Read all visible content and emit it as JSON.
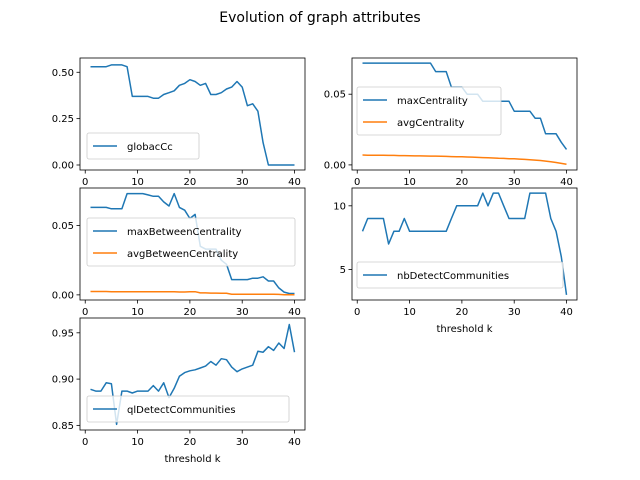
{
  "figure": {
    "title": "Evolution of graph attributes"
  },
  "chart_data": [
    {
      "type": "line",
      "title": "",
      "xlabel": "",
      "ylabel": "",
      "xlim": [
        -1,
        42
      ],
      "ylim": [
        -0.027,
        0.577
      ],
      "xticks": [
        0,
        10,
        20,
        30,
        40
      ],
      "yticks": [
        0.0,
        0.25,
        0.5
      ],
      "ytick_labels": [
        "0.00",
        "0.25",
        "0.50"
      ],
      "legend": "lower-left",
      "series": [
        {
          "name": "globacCc",
          "color": "#1f77b4",
          "x": [
            1,
            2,
            3,
            4,
            5,
            6,
            7,
            8,
            9,
            10,
            11,
            12,
            13,
            14,
            15,
            16,
            17,
            18,
            19,
            20,
            21,
            22,
            23,
            24,
            25,
            26,
            27,
            28,
            29,
            30,
            31,
            32,
            33,
            34,
            35,
            36,
            37,
            38,
            39,
            40
          ],
          "values": [
            0.53,
            0.53,
            0.53,
            0.53,
            0.54,
            0.54,
            0.54,
            0.53,
            0.37,
            0.37,
            0.37,
            0.37,
            0.36,
            0.36,
            0.38,
            0.39,
            0.4,
            0.43,
            0.44,
            0.46,
            0.45,
            0.43,
            0.44,
            0.38,
            0.38,
            0.39,
            0.41,
            0.42,
            0.45,
            0.42,
            0.32,
            0.33,
            0.29,
            0.12,
            0.0,
            0.0,
            0.0,
            0.0,
            0.0,
            0.0
          ]
        }
      ]
    },
    {
      "type": "line",
      "title": "",
      "xlabel": "",
      "ylabel": "",
      "xlim": [
        -1,
        42
      ],
      "ylim": [
        -0.0036,
        0.0756
      ],
      "xticks": [
        0,
        10,
        20,
        30,
        40
      ],
      "yticks": [
        0.0,
        0.05
      ],
      "ytick_labels": [
        "0.00",
        "0.05"
      ],
      "legend": "center-left",
      "series": [
        {
          "name": "maxCentrality",
          "color": "#1f77b4",
          "x": [
            1,
            2,
            3,
            4,
            5,
            6,
            7,
            8,
            9,
            10,
            11,
            12,
            13,
            14,
            15,
            16,
            17,
            18,
            19,
            20,
            21,
            22,
            23,
            24,
            25,
            26,
            27,
            28,
            29,
            30,
            31,
            32,
            33,
            34,
            35,
            36,
            37,
            38,
            39,
            40
          ],
          "values": [
            0.072,
            0.072,
            0.072,
            0.072,
            0.072,
            0.072,
            0.072,
            0.072,
            0.072,
            0.072,
            0.072,
            0.072,
            0.072,
            0.072,
            0.066,
            0.066,
            0.066,
            0.055,
            0.055,
            0.055,
            0.05,
            0.05,
            0.05,
            0.045,
            0.045,
            0.045,
            0.045,
            0.045,
            0.045,
            0.038,
            0.038,
            0.038,
            0.038,
            0.033,
            0.033,
            0.022,
            0.022,
            0.022,
            0.016,
            0.011
          ]
        },
        {
          "name": "avgCentrality",
          "color": "#ff7f0e",
          "x": [
            1,
            2,
            3,
            4,
            5,
            6,
            7,
            8,
            9,
            10,
            11,
            12,
            13,
            14,
            15,
            16,
            17,
            18,
            19,
            20,
            21,
            22,
            23,
            24,
            25,
            26,
            27,
            28,
            29,
            30,
            31,
            32,
            33,
            34,
            35,
            36,
            37,
            38,
            39,
            40
          ],
          "values": [
            0.007,
            0.0069,
            0.0069,
            0.0068,
            0.0068,
            0.0067,
            0.0067,
            0.0066,
            0.0066,
            0.0065,
            0.0064,
            0.0064,
            0.0063,
            0.0062,
            0.0062,
            0.0061,
            0.006,
            0.0059,
            0.0058,
            0.0057,
            0.0056,
            0.0055,
            0.0053,
            0.0052,
            0.005,
            0.0049,
            0.0047,
            0.0046,
            0.0044,
            0.0043,
            0.0041,
            0.0039,
            0.0037,
            0.0034,
            0.0031,
            0.0027,
            0.0022,
            0.0017,
            0.0011,
            0.0005
          ]
        }
      ]
    },
    {
      "type": "line",
      "title": "",
      "xlabel": "",
      "ylabel": "",
      "xlim": [
        -1,
        42
      ],
      "ylim": [
        -0.0037,
        0.077
      ],
      "xticks": [
        0,
        10,
        20,
        30,
        40
      ],
      "yticks": [
        0.0,
        0.05
      ],
      "ytick_labels": [
        "0.00",
        "0.05"
      ],
      "legend": "center-left",
      "series": [
        {
          "name": "maxBetweenCentrality",
          "color": "#1f77b4",
          "x": [
            1,
            2,
            3,
            4,
            5,
            6,
            7,
            8,
            9,
            10,
            11,
            12,
            13,
            14,
            15,
            16,
            17,
            18,
            19,
            20,
            21,
            22,
            23,
            24,
            25,
            26,
            27,
            28,
            29,
            30,
            31,
            32,
            33,
            34,
            35,
            36,
            37,
            38,
            39,
            40
          ],
          "values": [
            0.063,
            0.063,
            0.063,
            0.063,
            0.062,
            0.062,
            0.062,
            0.073,
            0.073,
            0.073,
            0.073,
            0.072,
            0.071,
            0.071,
            0.067,
            0.064,
            0.073,
            0.063,
            0.061,
            0.055,
            0.058,
            0.035,
            0.033,
            0.033,
            0.033,
            0.025,
            0.022,
            0.011,
            0.011,
            0.011,
            0.011,
            0.012,
            0.012,
            0.013,
            0.01,
            0.01,
            0.005,
            0.002,
            0.001,
            0.001
          ]
        },
        {
          "name": "avgBetweenCentrality",
          "color": "#ff7f0e",
          "x": [
            1,
            2,
            3,
            4,
            5,
            6,
            7,
            8,
            9,
            10,
            11,
            12,
            13,
            14,
            15,
            16,
            17,
            18,
            19,
            20,
            21,
            22,
            23,
            24,
            25,
            26,
            27,
            28,
            29,
            30,
            31,
            32,
            33,
            34,
            35,
            36,
            37,
            38,
            39,
            40
          ],
          "values": [
            0.0024,
            0.0024,
            0.0024,
            0.0024,
            0.0023,
            0.0023,
            0.0023,
            0.0023,
            0.0023,
            0.0023,
            0.0023,
            0.0023,
            0.0023,
            0.0023,
            0.0022,
            0.0022,
            0.0022,
            0.0021,
            0.0021,
            0.0023,
            0.0023,
            0.0014,
            0.0014,
            0.0013,
            0.0013,
            0.0012,
            0.0011,
            0.0005,
            0.0005,
            0.0005,
            0.0005,
            0.0005,
            0.0005,
            0.0005,
            0.0004,
            0.0004,
            0.0003,
            0.0001,
            0.0001,
            0.0001
          ]
        }
      ]
    },
    {
      "type": "line",
      "title": "",
      "xlabel": "threshold k",
      "ylabel": "",
      "xlim": [
        -1,
        42
      ],
      "ylim": [
        2.6,
        11.4
      ],
      "xticks": [
        0,
        10,
        20,
        30,
        40
      ],
      "yticks": [
        5,
        10
      ],
      "ytick_labels": [
        "5",
        "10"
      ],
      "legend": "lower-left",
      "series": [
        {
          "name": "nbDetectCommunities",
          "color": "#1f77b4",
          "x": [
            1,
            2,
            3,
            4,
            5,
            6,
            7,
            8,
            9,
            10,
            11,
            12,
            13,
            14,
            15,
            16,
            17,
            18,
            19,
            20,
            21,
            22,
            23,
            24,
            25,
            26,
            27,
            28,
            29,
            30,
            31,
            32,
            33,
            34,
            35,
            36,
            37,
            38,
            39,
            40
          ],
          "values": [
            8,
            9,
            9,
            9,
            9,
            7,
            8,
            8,
            9,
            8,
            8,
            8,
            8,
            8,
            8,
            8,
            8,
            9,
            10,
            10,
            10,
            10,
            10,
            11,
            10,
            11,
            11,
            10,
            9,
            9,
            9,
            9,
            11,
            11,
            11,
            11,
            9,
            8,
            6,
            3
          ]
        }
      ]
    },
    {
      "type": "line",
      "title": "",
      "xlabel": "threshold k",
      "ylabel": "",
      "xlim": [
        -1,
        42
      ],
      "ylim": [
        0.845,
        0.966
      ],
      "xticks": [
        0,
        10,
        20,
        30,
        40
      ],
      "yticks": [
        0.85,
        0.9,
        0.95
      ],
      "ytick_labels": [
        "0.85",
        "0.90",
        "0.95"
      ],
      "legend": "lower-left",
      "series": [
        {
          "name": "qlDetectCommunities",
          "color": "#1f77b4",
          "x": [
            1,
            2,
            3,
            4,
            5,
            6,
            7,
            8,
            9,
            10,
            11,
            12,
            13,
            14,
            15,
            16,
            17,
            18,
            19,
            20,
            21,
            22,
            23,
            24,
            25,
            26,
            27,
            28,
            29,
            30,
            31,
            32,
            33,
            34,
            35,
            36,
            37,
            38,
            39,
            40
          ],
          "values": [
            0.889,
            0.887,
            0.887,
            0.896,
            0.895,
            0.851,
            0.887,
            0.887,
            0.885,
            0.887,
            0.887,
            0.887,
            0.893,
            0.887,
            0.896,
            0.88,
            0.89,
            0.903,
            0.907,
            0.909,
            0.91,
            0.912,
            0.914,
            0.919,
            0.915,
            0.922,
            0.921,
            0.913,
            0.908,
            0.911,
            0.913,
            0.915,
            0.93,
            0.929,
            0.935,
            0.931,
            0.939,
            0.933,
            0.959,
            0.929
          ]
        }
      ]
    }
  ]
}
